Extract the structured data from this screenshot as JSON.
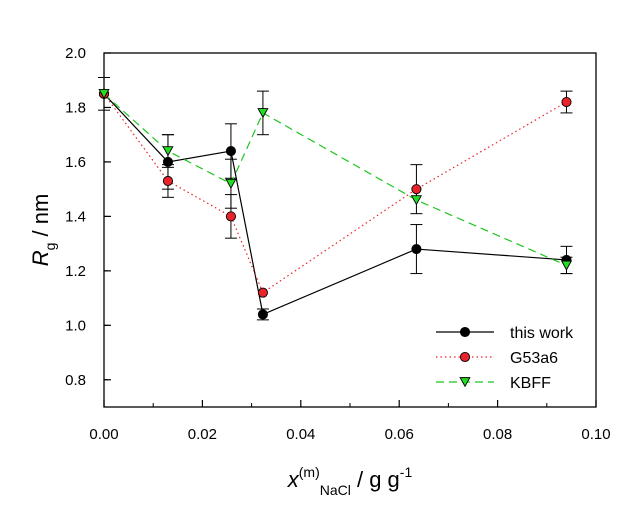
{
  "chart_data": {
    "type": "line",
    "xlim": [
      0.0,
      0.1
    ],
    "ylim": [
      0.7,
      2.0
    ],
    "x_ticks": [
      "0.00",
      "0.02",
      "0.04",
      "0.06",
      "0.08",
      "0.10"
    ],
    "y_ticks": [
      "0.8",
      "1.0",
      "1.2",
      "1.4",
      "1.6",
      "1.8",
      "2.0"
    ],
    "x_tick_values": [
      0.0,
      0.02,
      0.04,
      0.06,
      0.08,
      0.1
    ],
    "y_tick_values": [
      0.8,
      1.0,
      1.2,
      1.4,
      1.6,
      1.8,
      2.0
    ],
    "xlabel": {
      "main": "x",
      "sup": "(m)",
      "sub": "NaCl",
      "units": " / g g",
      "units_sup": "-1"
    },
    "ylabel": {
      "main": "R",
      "sub": "g",
      "units": " / nm"
    },
    "grid": false,
    "legend_position": "bottom-right",
    "series": [
      {
        "name": "this work",
        "color": "#000000",
        "marker": "circle",
        "marker_fill": "#000000",
        "line_style": "solid",
        "x": [
          0.0,
          0.013,
          0.0258,
          0.0323,
          0.0635,
          0.094
        ],
        "y": [
          1.85,
          1.6,
          1.64,
          1.04,
          1.28,
          1.24
        ],
        "err": [
          0.06,
          0.1,
          0.1,
          0.02,
          0.09,
          0.05
        ]
      },
      {
        "name": "G53a6",
        "color": "#e8232a",
        "marker": "circle",
        "marker_fill": "#e8232a",
        "line_style": "dotted",
        "x": [
          0.0,
          0.013,
          0.0258,
          0.0323,
          0.0635,
          0.094
        ],
        "y": [
          1.85,
          1.53,
          1.4,
          1.12,
          1.5,
          1.82
        ],
        "err": [
          0.0,
          0.06,
          0.08,
          0.0,
          0.09,
          0.04
        ]
      },
      {
        "name": "KBFF",
        "color": "#1fc41f",
        "marker": "triangle-down",
        "marker_fill": "#22dd22",
        "line_style": "dashed",
        "x": [
          0.0,
          0.013,
          0.0258,
          0.0323,
          0.0635,
          0.094
        ],
        "y": [
          1.85,
          1.64,
          1.52,
          1.78,
          1.46,
          1.22
        ],
        "err": [
          0.0,
          0.06,
          0.09,
          0.08,
          0.0,
          0.03
        ]
      }
    ]
  }
}
